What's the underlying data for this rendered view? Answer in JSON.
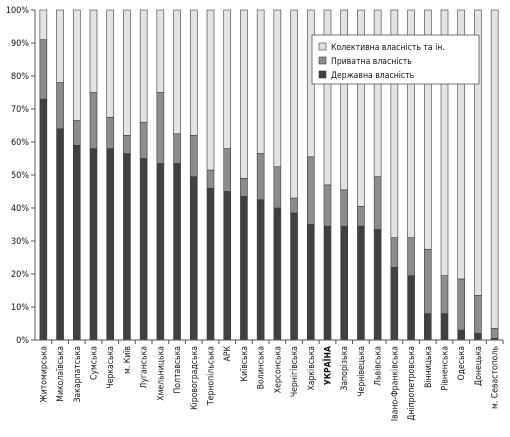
{
  "chart_data": {
    "type": "bar",
    "stacked": true,
    "percent": true,
    "title": "",
    "xlabel": "",
    "ylabel": "",
    "ylim": [
      0,
      100
    ],
    "y_ticks": [
      "0%",
      "10%",
      "20%",
      "30%",
      "40%",
      "50%",
      "60%",
      "70%",
      "80%",
      "90%",
      "100%"
    ],
    "grid": false,
    "legend_position": "top-right",
    "categories": [
      "Житомирська",
      "Миколаївська",
      "Закарпатська",
      "Сумська",
      "Черкаська",
      "м. Київ",
      "Луганська",
      "Хмельницька",
      "Полтавська",
      "Кіровоградська",
      "Тернопільська",
      "АРК",
      "Київська",
      "Волинська",
      "Херсонська",
      "Чернігівська",
      "Харківська",
      "УКРАЇНА",
      "Запорізька",
      "Чернівецька",
      "Львівська",
      "Івано-Франківська",
      "Дніпропетровська",
      "Вінницька",
      "Рівненська",
      "Одеська",
      "Донецька",
      "м. Севастополь"
    ],
    "highlight_category": "УКРАЇНА",
    "series": [
      {
        "name": "Державна власність",
        "color": "#404040",
        "values": [
          73,
          64,
          59,
          58,
          58,
          56.5,
          55,
          53.5,
          53.5,
          49.5,
          46,
          45,
          43.5,
          42.5,
          40,
          38.5,
          35,
          34.5,
          34.5,
          34.5,
          33.5,
          22,
          19.5,
          8,
          8,
          3,
          2,
          0.5
        ]
      },
      {
        "name": "Приватна власність",
        "color": "#8c8c8c",
        "values": [
          18,
          14,
          7.5,
          17,
          9.5,
          5.5,
          11,
          21.5,
          9,
          12.5,
          5.5,
          13,
          5.5,
          14,
          12.5,
          4.5,
          20.5,
          12.5,
          11,
          6,
          16,
          9,
          11.5,
          19.5,
          11.5,
          15.5,
          11.5,
          3
        ]
      },
      {
        "name": "Колективна власність та ін.",
        "color": "#e3e3e3",
        "values": [
          9,
          22,
          33.5,
          25,
          32.5,
          38,
          34,
          25,
          37.5,
          38,
          48.5,
          42,
          51,
          43.5,
          47.5,
          57,
          44.5,
          53,
          54.5,
          59.5,
          50.5,
          69,
          69,
          72.5,
          80.5,
          81.5,
          86.5,
          96.5
        ]
      }
    ],
    "legend_order": [
      "Колективна власність та ін.",
      "Приватна власність",
      "Державна власність"
    ]
  }
}
